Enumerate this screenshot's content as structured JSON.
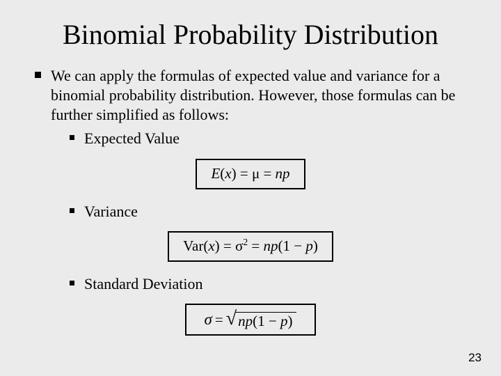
{
  "background_color": "#ebebeb",
  "text_color": "#000000",
  "font_family": "Times New Roman",
  "title": "Binomial Probability Distribution",
  "title_fontsize": 40,
  "body_fontsize": 22,
  "formula_fontsize": 21,
  "formula_border_color": "#000000",
  "formula_border_width": 2,
  "bullets": {
    "level1": {
      "intro": "We can apply the formulas of expected value and variance for a binomial probability distribution. However, those formulas can be further simplified as follows:"
    },
    "level2": {
      "expected_value": "Expected Value",
      "variance": "Variance",
      "std_dev": "Standard Deviation"
    }
  },
  "formulas": {
    "expected_value": {
      "display": "E(x) = μ = np",
      "lhs": "E",
      "var": "x",
      "mu": "μ",
      "rhs": "np"
    },
    "variance": {
      "display": "Var(x) = σ² = np(1 − p)",
      "lhs": "Var",
      "var": "x",
      "sigma": "σ",
      "exp": "2",
      "rhs1": "np",
      "rhs2": "(1 − ",
      "rhs3": "p",
      "rhs4": ")"
    },
    "std_dev": {
      "display": "σ = √(np(1 − p))",
      "sigma": "σ",
      "eq": " = ",
      "radicand1": "np",
      "radicand2": "(1 − ",
      "radicand3": "p",
      "radicand4": ")"
    }
  },
  "page_number": "23"
}
